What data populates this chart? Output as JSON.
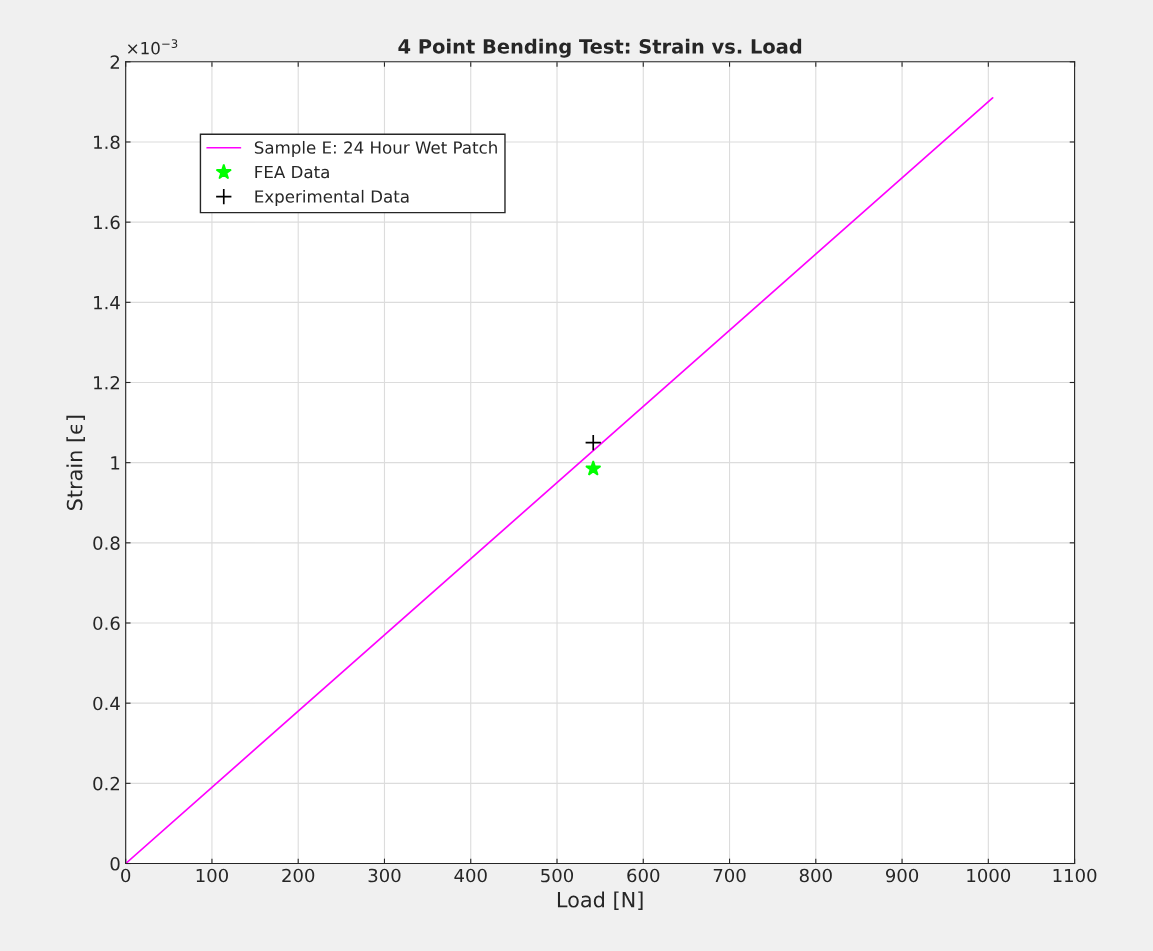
{
  "chart_data": {
    "type": "line",
    "title": "4 Point Bending Test: Strain vs. Load",
    "xlabel": "Load [N]",
    "ylabel": "Strain [ϵ]",
    "series": [
      {
        "name": "Sample E: 24 Hour Wet Patch",
        "color": "#ff00ff",
        "marker": "none",
        "x": [
          0,
          1005
        ],
        "values": [
          0,
          1.91
        ]
      },
      {
        "name": "FEA Data",
        "type": "scatter",
        "color": "#00ff00",
        "marker": "star",
        "x": [
          542
        ],
        "values": [
          0.985
        ]
      },
      {
        "name": "Experimental Data",
        "type": "scatter",
        "color": "#000000",
        "marker": "cross",
        "x": [
          542
        ],
        "values": [
          1.05
        ]
      }
    ],
    "xlim": [
      0,
      1100
    ],
    "xticks": [
      0,
      100,
      200,
      300,
      400,
      500,
      600,
      700,
      800,
      900,
      1000,
      1100
    ],
    "ylim": [
      0,
      2
    ],
    "yticks": [
      0,
      0.2,
      0.4,
      0.6,
      0.8,
      1,
      1.2,
      1.4,
      1.6,
      1.8,
      2
    ],
    "annotations": [
      "×10$^{−3}$"
    ],
    "grid": true,
    "legend": "top left"
  }
}
